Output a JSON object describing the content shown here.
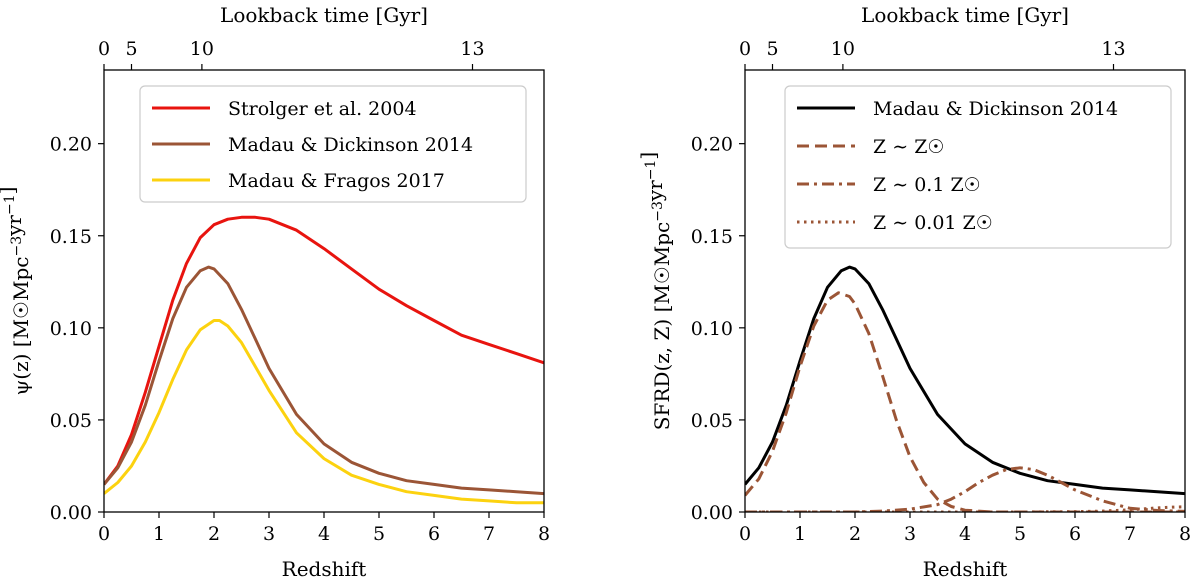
{
  "chart_data": [
    {
      "type": "line",
      "xlabel": "Redshift",
      "ylabel": "ψ(z) [M☉Mpc⁻³yr⁻¹]",
      "top_xlabel": "Lookback time [Gyr]",
      "xlim": [
        0,
        8
      ],
      "ylim": [
        0,
        0.24
      ],
      "xticks": [
        0,
        1,
        2,
        3,
        4,
        5,
        6,
        7,
        8
      ],
      "xtick_labels": [
        "0",
        "1",
        "2",
        "3",
        "4",
        "5",
        "6",
        "7",
        "8"
      ],
      "yticks": [
        0,
        0.05,
        0.1,
        0.15,
        0.2
      ],
      "ytick_labels": [
        "0.00",
        "0.05",
        "0.10",
        "0.15",
        "0.20"
      ],
      "top_ticks": [
        {
          "label": "0",
          "z": 0
        },
        {
          "label": "5",
          "z": 0.5
        },
        {
          "label": "10",
          "z": 1.78
        },
        {
          "label": "13",
          "z": 6.7
        }
      ],
      "legend_position": "top-right",
      "grid": false,
      "series": [
        {
          "name": "Strolger et al. 2004",
          "color": "#e8140f",
          "dash": "solid",
          "x": [
            0,
            0.25,
            0.5,
            0.75,
            1.0,
            1.25,
            1.5,
            1.75,
            2.0,
            2.25,
            2.5,
            2.75,
            3.0,
            3.5,
            4.0,
            4.5,
            5.0,
            5.5,
            6.0,
            6.5,
            7.0,
            7.5,
            8.0
          ],
          "y": [
            0.015,
            0.025,
            0.042,
            0.065,
            0.09,
            0.115,
            0.135,
            0.149,
            0.156,
            0.159,
            0.16,
            0.16,
            0.159,
            0.153,
            0.143,
            0.132,
            0.121,
            0.112,
            0.104,
            0.096,
            0.091,
            0.086,
            0.081
          ]
        },
        {
          "name": "Madau & Dickinson 2014",
          "color": "#9b5536",
          "dash": "solid",
          "x": [
            0,
            0.25,
            0.5,
            0.75,
            1.0,
            1.25,
            1.5,
            1.75,
            1.9,
            2.0,
            2.25,
            2.5,
            2.75,
            3.0,
            3.5,
            4.0,
            4.5,
            5.0,
            5.5,
            6.0,
            6.5,
            7.0,
            7.5,
            8.0
          ],
          "y": [
            0.015,
            0.024,
            0.038,
            0.058,
            0.082,
            0.105,
            0.122,
            0.131,
            0.133,
            0.132,
            0.124,
            0.11,
            0.094,
            0.078,
            0.053,
            0.037,
            0.027,
            0.021,
            0.017,
            0.015,
            0.013,
            0.012,
            0.011,
            0.01
          ]
        },
        {
          "name": "Madau & Fragos 2017",
          "color": "#fcd20f",
          "dash": "solid",
          "x": [
            0,
            0.25,
            0.5,
            0.75,
            1.0,
            1.25,
            1.5,
            1.75,
            2.0,
            2.1,
            2.25,
            2.5,
            2.75,
            3.0,
            3.5,
            4.0,
            4.5,
            5.0,
            5.5,
            6.0,
            6.5,
            7.0,
            7.5,
            8.0
          ],
          "y": [
            0.01,
            0.016,
            0.025,
            0.038,
            0.054,
            0.072,
            0.088,
            0.099,
            0.104,
            0.104,
            0.101,
            0.092,
            0.079,
            0.066,
            0.043,
            0.029,
            0.02,
            0.015,
            0.011,
            0.009,
            0.007,
            0.006,
            0.005,
            0.005
          ]
        }
      ]
    },
    {
      "type": "line",
      "xlabel": "Redshift",
      "ylabel": "SFRD(z, Z) [M☉Mpc⁻³yr⁻¹]",
      "top_xlabel": "Lookback time [Gyr]",
      "xlim": [
        0,
        8
      ],
      "ylim": [
        0,
        0.24
      ],
      "xticks": [
        0,
        1,
        2,
        3,
        4,
        5,
        6,
        7,
        8
      ],
      "xtick_labels": [
        "0",
        "1",
        "2",
        "3",
        "4",
        "5",
        "6",
        "7",
        "8"
      ],
      "yticks": [
        0,
        0.05,
        0.1,
        0.15,
        0.2
      ],
      "ytick_labels": [
        "0.00",
        "0.05",
        "0.10",
        "0.15",
        "0.20"
      ],
      "top_ticks": [
        {
          "label": "0",
          "z": 0
        },
        {
          "label": "5",
          "z": 0.5
        },
        {
          "label": "10",
          "z": 1.78
        },
        {
          "label": "13",
          "z": 6.7
        }
      ],
      "legend_position": "top-right",
      "grid": false,
      "series": [
        {
          "name": "Madau & Dickinson 2014",
          "color": "#000000",
          "dash": "solid",
          "x": [
            0,
            0.25,
            0.5,
            0.75,
            1.0,
            1.25,
            1.5,
            1.75,
            1.9,
            2.0,
            2.25,
            2.5,
            2.75,
            3.0,
            3.5,
            4.0,
            4.5,
            5.0,
            5.5,
            6.0,
            6.5,
            7.0,
            7.5,
            8.0
          ],
          "y": [
            0.015,
            0.024,
            0.038,
            0.058,
            0.082,
            0.105,
            0.122,
            0.131,
            0.133,
            0.132,
            0.124,
            0.11,
            0.094,
            0.078,
            0.053,
            0.037,
            0.027,
            0.021,
            0.017,
            0.015,
            0.013,
            0.012,
            0.011,
            0.01
          ]
        },
        {
          "name": "Z ∼ Z☉",
          "color": "#9b5536",
          "dash": "dashed",
          "x": [
            0,
            0.25,
            0.5,
            0.75,
            1.0,
            1.25,
            1.5,
            1.7,
            1.9,
            2.0,
            2.25,
            2.5,
            2.75,
            3.0,
            3.25,
            3.5,
            3.75,
            4.0,
            4.5,
            5.0,
            6.0,
            7.0,
            8.0
          ],
          "y": [
            0.009,
            0.018,
            0.033,
            0.054,
            0.079,
            0.101,
            0.115,
            0.119,
            0.117,
            0.113,
            0.097,
            0.074,
            0.05,
            0.03,
            0.016,
            0.007,
            0.003,
            0.001,
            0.0,
            0.0,
            0.0,
            0.0,
            0.0
          ]
        },
        {
          "name": "Z ∼  0.1 Z☉",
          "color": "#9b5536",
          "dash": "dashdot",
          "x": [
            0,
            1.0,
            2.0,
            2.5,
            3.0,
            3.5,
            3.75,
            4.0,
            4.25,
            4.5,
            4.75,
            5.0,
            5.25,
            5.5,
            5.75,
            6.0,
            6.5,
            7.0,
            7.5,
            8.0
          ],
          "y": [
            0.0,
            0.0,
            0.0,
            0.0005,
            0.0015,
            0.004,
            0.007,
            0.011,
            0.016,
            0.02,
            0.023,
            0.024,
            0.023,
            0.02,
            0.016,
            0.012,
            0.006,
            0.002,
            0.0008,
            0.0003
          ]
        },
        {
          "name": "Z ∼  0.01 Z☉",
          "color": "#9b5536",
          "dash": "dotted",
          "x": [
            0,
            1,
            2,
            3,
            4,
            5,
            6,
            6.5,
            7.0,
            7.5,
            7.75,
            8.0
          ],
          "y": [
            0.0,
            0.0,
            0.0,
            0.0,
            0.0,
            0.0,
            0.0002,
            0.0005,
            0.0012,
            0.0022,
            0.0026,
            0.0028
          ]
        }
      ]
    }
  ]
}
